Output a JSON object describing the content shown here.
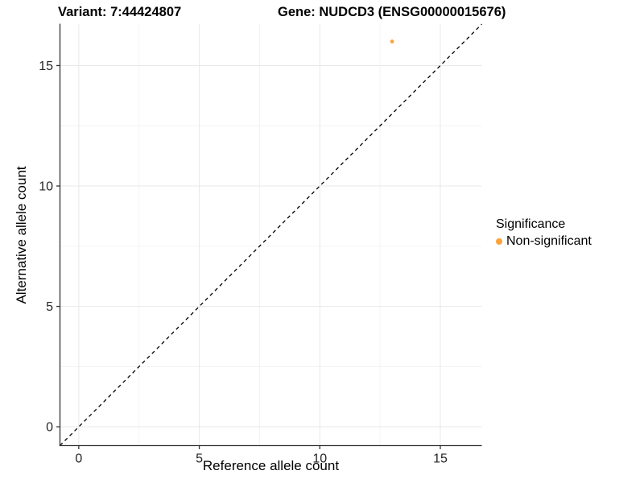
{
  "header": {
    "variant_title": "Variant: 7:44424807",
    "gene_title": "Gene: NUDCD3 (ENSG00000015676)"
  },
  "axes": {
    "x_title": "Reference allele count",
    "y_title": "Alternative allele count"
  },
  "legend": {
    "title": "Significance",
    "items": [
      {
        "label": "Non-significant",
        "color": "#FCA33C"
      }
    ]
  },
  "chart_data": {
    "type": "scatter",
    "title": "Variant: 7:44424807  |  Gene: NUDCD3 (ENSG00000015676)",
    "xlabel": "Reference allele count",
    "ylabel": "Alternative allele count",
    "xlim": [
      -0.78,
      16.72
    ],
    "ylim": [
      -0.78,
      16.72
    ],
    "xticks": [
      0,
      5,
      10,
      15
    ],
    "yticks": [
      0,
      5,
      10,
      15
    ],
    "minor_ticks": [
      2.5,
      7.5,
      12.5
    ],
    "grid": "major+minor",
    "legend_position": "right",
    "series": [
      {
        "name": "Non-significant",
        "color": "#FCA33C",
        "points": [
          {
            "x": 13,
            "y": 16
          }
        ]
      }
    ],
    "reference_line": {
      "slope": 1,
      "intercept": 0,
      "style": "dashed",
      "color": "#000000"
    }
  },
  "style": {
    "axis_color": "#333333",
    "tick_label_color": "#262626",
    "grid_major_color": "#E8E8E8",
    "grid_minor_color": "#F3F3F3",
    "point_color": "#FCA33C"
  }
}
